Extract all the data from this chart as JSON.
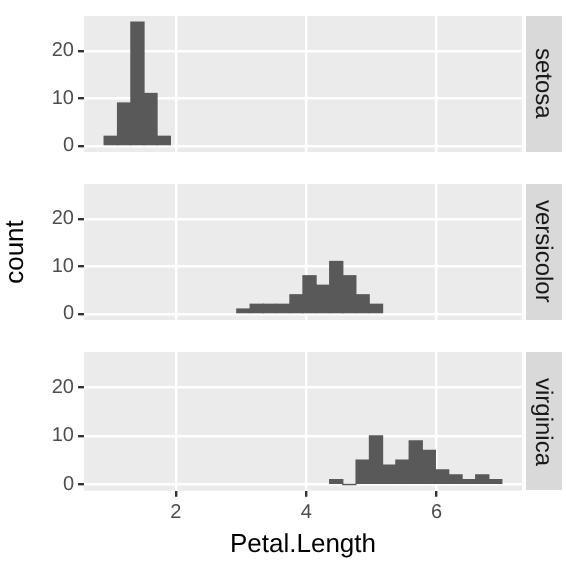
{
  "chart_data": [
    {
      "type": "histogram",
      "title": "setosa",
      "bins": [
        0.9,
        1.1,
        1.31,
        1.51,
        1.71,
        1.92
      ],
      "values": [
        2,
        9,
        26,
        11,
        2
      ],
      "color": "#595959",
      "xlim": [
        0.59,
        7.31
      ],
      "xticks": [
        2,
        4,
        6
      ],
      "ylim": [
        -1.3,
        27.3
      ],
      "yticks": [
        0,
        10,
        20
      ],
      "grid": true,
      "tick_labels": "y"
    },
    {
      "type": "histogram",
      "title": "versicolor",
      "ylabel": "count",
      "bins": [
        2.93,
        3.14,
        3.34,
        3.54,
        3.75,
        3.95,
        4.15,
        4.36,
        4.56,
        4.76,
        4.97,
        5.17
      ],
      "values": [
        1,
        2,
        2,
        2,
        4,
        8,
        6,
        11,
        8,
        4,
        2
      ],
      "color": "#595959",
      "xlim": [
        0.59,
        7.31
      ],
      "xticks": [
        2,
        4,
        6
      ],
      "ylim": [
        -1.3,
        27.3
      ],
      "yticks": [
        0,
        10,
        20
      ],
      "grid": true,
      "tick_labels": "y"
    },
    {
      "type": "histogram",
      "title": "virginica",
      "xlabel": "Petal.Length",
      "bins": [
        4.36,
        4.56,
        4.76,
        4.97,
        5.17,
        5.37,
        5.58,
        5.78,
        5.98,
        6.19,
        6.39,
        6.6,
        6.8,
        7.0
      ],
      "values": [
        1,
        0,
        5,
        10,
        4,
        5,
        9,
        7,
        3,
        2,
        1,
        2,
        1
      ],
      "color": "#595959",
      "xlim": [
        0.59,
        7.31
      ],
      "xticks": [
        2,
        4,
        6
      ],
      "ylim": [
        -1.3,
        27.3
      ],
      "yticks": [
        0,
        10,
        20
      ],
      "grid": true
    }
  ]
}
